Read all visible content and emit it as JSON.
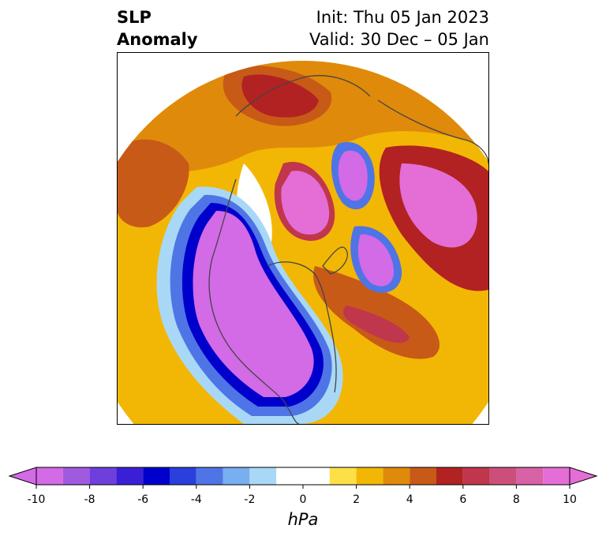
{
  "title": {
    "left_line1": "SLP",
    "left_line2": "Anomaly",
    "right_line1": "Init: Thu 05 Jan 2023",
    "right_line2": "Valid: 30 Dec – 05 Jan"
  },
  "colorbar": {
    "unit": "hPa",
    "ticks": [
      "-10",
      "-8",
      "-6",
      "-4",
      "-2",
      "0",
      "2",
      "4",
      "6",
      "8",
      "10"
    ],
    "levels": [
      -10,
      -9,
      -8,
      -7,
      -6,
      -5,
      -4,
      -3,
      -2,
      -1,
      1,
      2,
      3,
      4,
      5,
      6,
      7,
      8,
      9,
      10
    ],
    "colors": [
      "#d36ae6",
      "#a05ae0",
      "#6e3fdc",
      "#3b1fd6",
      "#0000cc",
      "#2a3fdc",
      "#4f74e6",
      "#79aef0",
      "#a9d8f7",
      "#ffffff",
      "#fde047",
      "#f2b705",
      "#e08a0b",
      "#c85a17",
      "#b22222",
      "#c0364c",
      "#cc4f7b",
      "#d862a6",
      "#e46ed6"
    ],
    "extend": "both"
  },
  "map": {
    "projection": "north polar stereographic",
    "fill_colors": {
      "neg_weak": "#a9d8f7",
      "neg_mid": "#4f74e6",
      "neg_strong": "#0000cc",
      "neg_extreme": "#d36ae6",
      "pos_weak": "#fde047",
      "pos_mid": "#f2b705",
      "pos_strong": "#e08a0b",
      "pos_heavy": "#c85a17",
      "pos_very": "#b22222",
      "pos_extreme": "#e46ed6"
    }
  }
}
